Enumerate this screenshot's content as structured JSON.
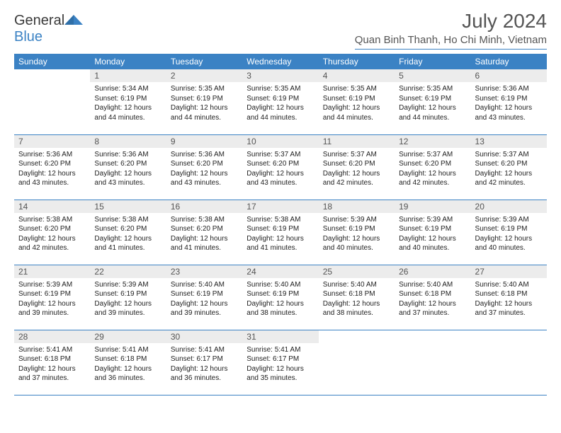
{
  "brand": {
    "part1": "General",
    "part2": "Blue"
  },
  "title": "July 2024",
  "location": "Quan Binh Thanh, Ho Chi Minh, Vietnam",
  "colors": {
    "header_bg": "#3b82c4",
    "header_text": "#ffffff",
    "daynum_bg": "#ececec",
    "text": "#333333",
    "border": "#3b82c4"
  },
  "typography": {
    "body_fontsize": 10,
    "daynum_fontsize": 12,
    "header_fontsize": 12,
    "title_fontsize": 28,
    "location_fontsize": 15
  },
  "weekdays": [
    "Sunday",
    "Monday",
    "Tuesday",
    "Wednesday",
    "Thursday",
    "Friday",
    "Saturday"
  ],
  "weeks": [
    [
      null,
      {
        "n": "1",
        "sr": "Sunrise: 5:34 AM",
        "ss": "Sunset: 6:19 PM",
        "d1": "Daylight: 12 hours",
        "d2": "and 44 minutes."
      },
      {
        "n": "2",
        "sr": "Sunrise: 5:35 AM",
        "ss": "Sunset: 6:19 PM",
        "d1": "Daylight: 12 hours",
        "d2": "and 44 minutes."
      },
      {
        "n": "3",
        "sr": "Sunrise: 5:35 AM",
        "ss": "Sunset: 6:19 PM",
        "d1": "Daylight: 12 hours",
        "d2": "and 44 minutes."
      },
      {
        "n": "4",
        "sr": "Sunrise: 5:35 AM",
        "ss": "Sunset: 6:19 PM",
        "d1": "Daylight: 12 hours",
        "d2": "and 44 minutes."
      },
      {
        "n": "5",
        "sr": "Sunrise: 5:35 AM",
        "ss": "Sunset: 6:19 PM",
        "d1": "Daylight: 12 hours",
        "d2": "and 44 minutes."
      },
      {
        "n": "6",
        "sr": "Sunrise: 5:36 AM",
        "ss": "Sunset: 6:19 PM",
        "d1": "Daylight: 12 hours",
        "d2": "and 43 minutes."
      }
    ],
    [
      {
        "n": "7",
        "sr": "Sunrise: 5:36 AM",
        "ss": "Sunset: 6:20 PM",
        "d1": "Daylight: 12 hours",
        "d2": "and 43 minutes."
      },
      {
        "n": "8",
        "sr": "Sunrise: 5:36 AM",
        "ss": "Sunset: 6:20 PM",
        "d1": "Daylight: 12 hours",
        "d2": "and 43 minutes."
      },
      {
        "n": "9",
        "sr": "Sunrise: 5:36 AM",
        "ss": "Sunset: 6:20 PM",
        "d1": "Daylight: 12 hours",
        "d2": "and 43 minutes."
      },
      {
        "n": "10",
        "sr": "Sunrise: 5:37 AM",
        "ss": "Sunset: 6:20 PM",
        "d1": "Daylight: 12 hours",
        "d2": "and 43 minutes."
      },
      {
        "n": "11",
        "sr": "Sunrise: 5:37 AM",
        "ss": "Sunset: 6:20 PM",
        "d1": "Daylight: 12 hours",
        "d2": "and 42 minutes."
      },
      {
        "n": "12",
        "sr": "Sunrise: 5:37 AM",
        "ss": "Sunset: 6:20 PM",
        "d1": "Daylight: 12 hours",
        "d2": "and 42 minutes."
      },
      {
        "n": "13",
        "sr": "Sunrise: 5:37 AM",
        "ss": "Sunset: 6:20 PM",
        "d1": "Daylight: 12 hours",
        "d2": "and 42 minutes."
      }
    ],
    [
      {
        "n": "14",
        "sr": "Sunrise: 5:38 AM",
        "ss": "Sunset: 6:20 PM",
        "d1": "Daylight: 12 hours",
        "d2": "and 42 minutes."
      },
      {
        "n": "15",
        "sr": "Sunrise: 5:38 AM",
        "ss": "Sunset: 6:20 PM",
        "d1": "Daylight: 12 hours",
        "d2": "and 41 minutes."
      },
      {
        "n": "16",
        "sr": "Sunrise: 5:38 AM",
        "ss": "Sunset: 6:20 PM",
        "d1": "Daylight: 12 hours",
        "d2": "and 41 minutes."
      },
      {
        "n": "17",
        "sr": "Sunrise: 5:38 AM",
        "ss": "Sunset: 6:19 PM",
        "d1": "Daylight: 12 hours",
        "d2": "and 41 minutes."
      },
      {
        "n": "18",
        "sr": "Sunrise: 5:39 AM",
        "ss": "Sunset: 6:19 PM",
        "d1": "Daylight: 12 hours",
        "d2": "and 40 minutes."
      },
      {
        "n": "19",
        "sr": "Sunrise: 5:39 AM",
        "ss": "Sunset: 6:19 PM",
        "d1": "Daylight: 12 hours",
        "d2": "and 40 minutes."
      },
      {
        "n": "20",
        "sr": "Sunrise: 5:39 AM",
        "ss": "Sunset: 6:19 PM",
        "d1": "Daylight: 12 hours",
        "d2": "and 40 minutes."
      }
    ],
    [
      {
        "n": "21",
        "sr": "Sunrise: 5:39 AM",
        "ss": "Sunset: 6:19 PM",
        "d1": "Daylight: 12 hours",
        "d2": "and 39 minutes."
      },
      {
        "n": "22",
        "sr": "Sunrise: 5:39 AM",
        "ss": "Sunset: 6:19 PM",
        "d1": "Daylight: 12 hours",
        "d2": "and 39 minutes."
      },
      {
        "n": "23",
        "sr": "Sunrise: 5:40 AM",
        "ss": "Sunset: 6:19 PM",
        "d1": "Daylight: 12 hours",
        "d2": "and 39 minutes."
      },
      {
        "n": "24",
        "sr": "Sunrise: 5:40 AM",
        "ss": "Sunset: 6:19 PM",
        "d1": "Daylight: 12 hours",
        "d2": "and 38 minutes."
      },
      {
        "n": "25",
        "sr": "Sunrise: 5:40 AM",
        "ss": "Sunset: 6:18 PM",
        "d1": "Daylight: 12 hours",
        "d2": "and 38 minutes."
      },
      {
        "n": "26",
        "sr": "Sunrise: 5:40 AM",
        "ss": "Sunset: 6:18 PM",
        "d1": "Daylight: 12 hours",
        "d2": "and 37 minutes."
      },
      {
        "n": "27",
        "sr": "Sunrise: 5:40 AM",
        "ss": "Sunset: 6:18 PM",
        "d1": "Daylight: 12 hours",
        "d2": "and 37 minutes."
      }
    ],
    [
      {
        "n": "28",
        "sr": "Sunrise: 5:41 AM",
        "ss": "Sunset: 6:18 PM",
        "d1": "Daylight: 12 hours",
        "d2": "and 37 minutes."
      },
      {
        "n": "29",
        "sr": "Sunrise: 5:41 AM",
        "ss": "Sunset: 6:18 PM",
        "d1": "Daylight: 12 hours",
        "d2": "and 36 minutes."
      },
      {
        "n": "30",
        "sr": "Sunrise: 5:41 AM",
        "ss": "Sunset: 6:17 PM",
        "d1": "Daylight: 12 hours",
        "d2": "and 36 minutes."
      },
      {
        "n": "31",
        "sr": "Sunrise: 5:41 AM",
        "ss": "Sunset: 6:17 PM",
        "d1": "Daylight: 12 hours",
        "d2": "and 35 minutes."
      },
      null,
      null,
      null
    ]
  ]
}
